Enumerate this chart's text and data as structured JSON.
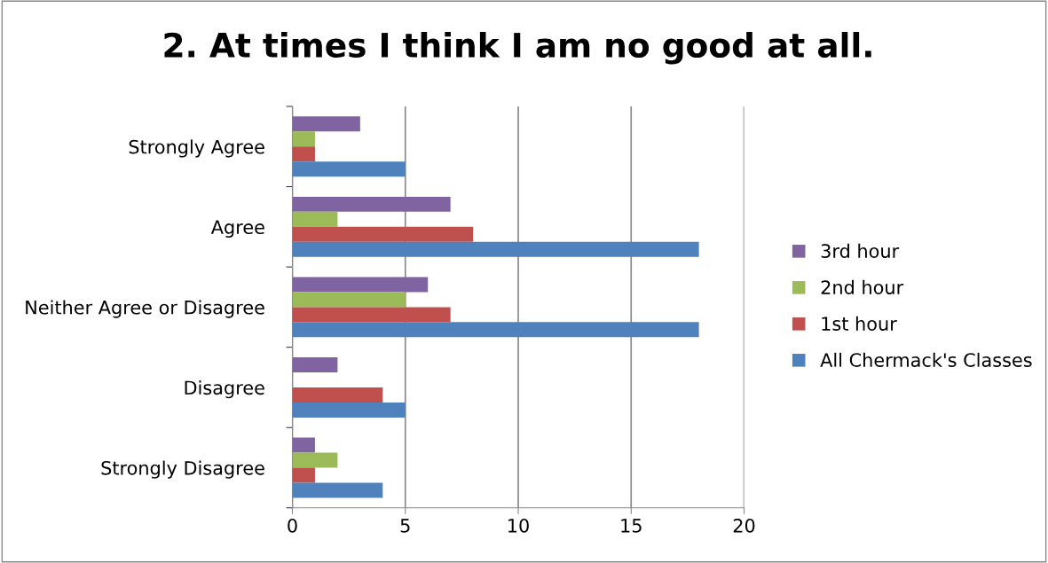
{
  "chart_data": {
    "type": "bar",
    "orientation": "horizontal",
    "title": "2. At times I think I am no good at all.",
    "categories": [
      "Strongly Agree",
      "Agree",
      "Neither Agree or Disagree",
      "Disagree",
      "Strongly Disagree"
    ],
    "series": [
      {
        "name": "3rd hour",
        "color": "#8064a2",
        "values": [
          3,
          7,
          6,
          2,
          1
        ]
      },
      {
        "name": "2nd hour",
        "color": "#9bbb59",
        "values": [
          1,
          2,
          5,
          0,
          2
        ]
      },
      {
        "name": "1st hour",
        "color": "#c0504d",
        "values": [
          1,
          8,
          7,
          4,
          1
        ]
      },
      {
        "name": "All Chermack's Classes",
        "color": "#4f81bd",
        "values": [
          5,
          18,
          18,
          5,
          4
        ]
      }
    ],
    "xlim": [
      0,
      20
    ],
    "xticks": [
      0,
      5,
      10,
      15,
      20
    ],
    "grid": "x",
    "legend": "right"
  }
}
